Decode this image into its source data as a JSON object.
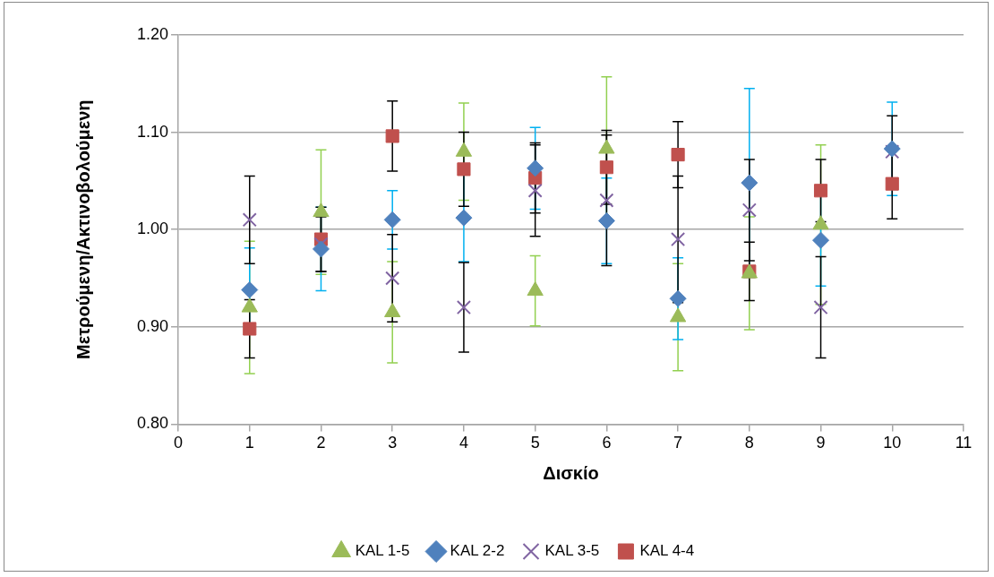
{
  "chart_data": {
    "type": "scatter",
    "xlabel": "Δισκίο",
    "ylabel": "Μετρούμενη/Ακτινοβολούμενη",
    "x": [
      1,
      2,
      3,
      4,
      5,
      6,
      7,
      8,
      9,
      10
    ],
    "xlim": [
      0,
      11
    ],
    "xticks": [
      0,
      1,
      2,
      3,
      4,
      5,
      6,
      7,
      8,
      9,
      10,
      11
    ],
    "ylim": [
      0.8,
      1.2
    ],
    "yticks": [
      {
        "value": 0.8,
        "label": "0.80"
      },
      {
        "value": 0.9,
        "label": "0.90"
      },
      {
        "value": 1.0,
        "label": "1.00"
      },
      {
        "value": 1.1,
        "label": "1.10"
      },
      {
        "value": 1.2,
        "label": "1.20"
      }
    ],
    "grid": "y",
    "legend": "bottom",
    "series": [
      {
        "name": "KAL 1-5",
        "color": "#9bbb59",
        "marker": "triangle",
        "values": [
          0.92,
          1.018,
          0.915,
          1.08,
          0.937,
          1.083,
          0.91,
          0.955,
          1.005,
          null
        ],
        "errors": [
          0.068,
          0.064,
          0.052,
          0.05,
          0.036,
          0.074,
          0.055,
          0.058,
          0.082,
          null
        ]
      },
      {
        "name": "KAL 2-2",
        "color": "#4f81bd",
        "marker": "diamond",
        "values": [
          0.938,
          0.98,
          1.01,
          1.012,
          1.063,
          1.009,
          0.929,
          1.048,
          0.989,
          1.083
        ],
        "errors": [
          0.043,
          0.043,
          0.03,
          0.045,
          0.042,
          0.044,
          0.042,
          0.097,
          0.047,
          0.048
        ]
      },
      {
        "name": "KAL 3-5",
        "color": "#8064a2",
        "marker": "cross",
        "values": [
          1.01,
          0.985,
          0.95,
          0.92,
          1.04,
          1.03,
          0.99,
          1.02,
          0.92,
          1.08
        ],
        "errors": [
          0.045,
          0.028,
          0.045,
          0.046,
          0.047,
          0.067,
          0.065,
          0.052,
          0.052,
          0.037
        ]
      },
      {
        "name": "KAL 4-4",
        "color": "#c0504d",
        "marker": "square",
        "values": [
          0.898,
          0.99,
          1.096,
          1.062,
          1.053,
          1.064,
          1.077,
          0.957,
          1.04,
          1.047
        ],
        "errors": [
          0.03,
          0.033,
          0.036,
          0.038,
          0.036,
          0.038,
          0.034,
          0.03,
          0.032,
          0.036
        ]
      }
    ]
  }
}
